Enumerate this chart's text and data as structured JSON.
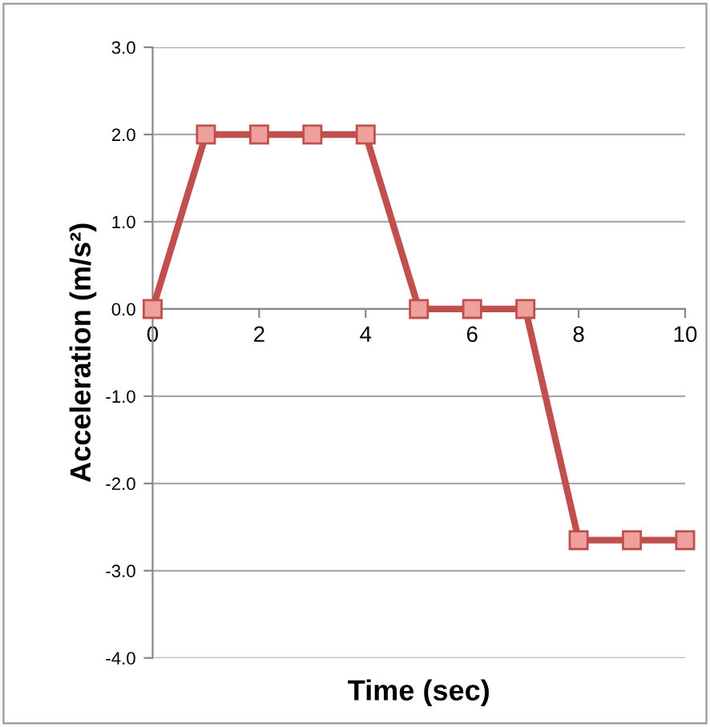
{
  "chart_data": {
    "type": "line",
    "xlabel": "Time (sec)",
    "ylabel": "Acceleration (m/s²)",
    "x": [
      0,
      1,
      2,
      3,
      4,
      5,
      6,
      7,
      8,
      9,
      10
    ],
    "series": [
      {
        "color": "#c0504d",
        "values": [
          0,
          2,
          2,
          2,
          2,
          0,
          0,
          0,
          -2.65,
          -2.65,
          -2.65
        ]
      }
    ],
    "xlim": [
      0,
      10
    ],
    "xticks": [
      0,
      2,
      4,
      6,
      8,
      10
    ],
    "ylim": [
      -4,
      3
    ],
    "yticks": [
      {
        "value": -4,
        "label": "-4.0"
      },
      {
        "value": -3,
        "label": "-3.0"
      },
      {
        "value": -2,
        "label": "-2.0"
      },
      {
        "value": -1,
        "label": "-1.0"
      },
      {
        "value": 0,
        "label": "0.0"
      },
      {
        "value": 1,
        "label": "1.0"
      },
      {
        "value": 2,
        "label": "2.0"
      },
      {
        "value": 3,
        "label": "3.0"
      }
    ],
    "grid": "y",
    "marker": "square",
    "line_style": "solid"
  }
}
